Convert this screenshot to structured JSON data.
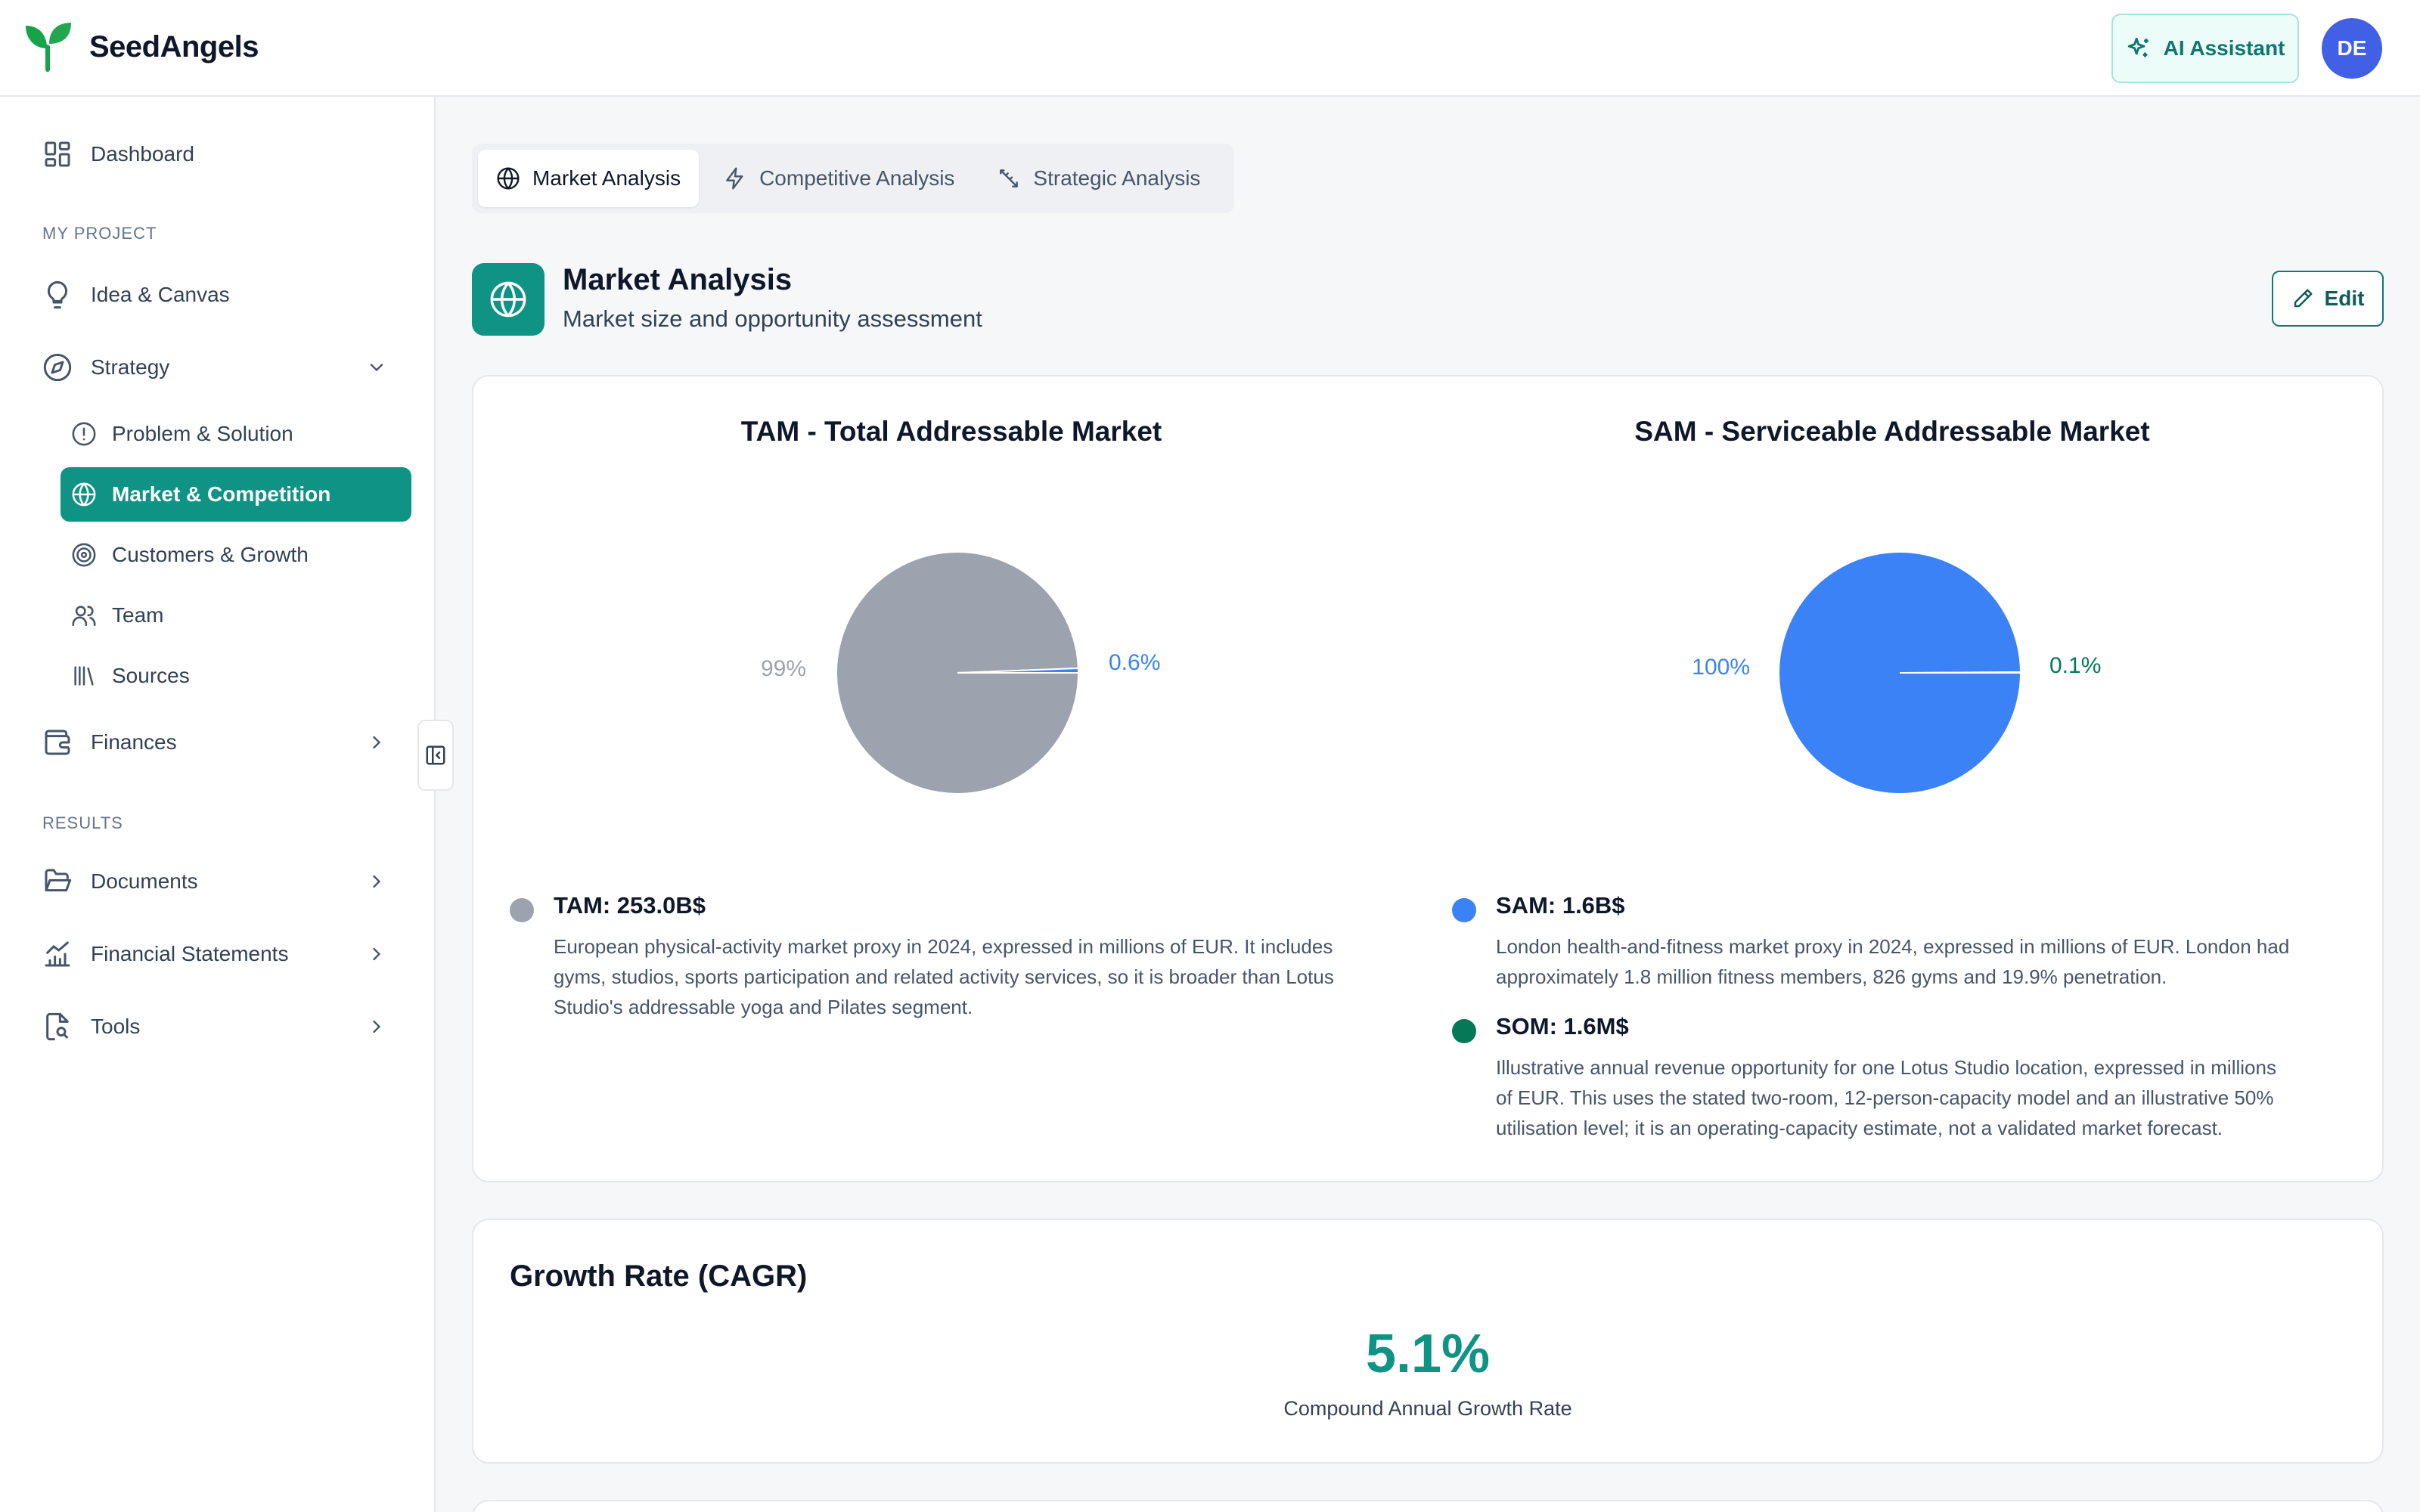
{
  "app": {
    "name": "SeedAngels"
  },
  "header": {
    "ai_button": "AI Assistant",
    "avatar_initials": "DE"
  },
  "sidebar": {
    "dashboard": "Dashboard",
    "section_project": "MY PROJECT",
    "idea_canvas": "Idea & Canvas",
    "strategy": "Strategy",
    "strategy_items": [
      {
        "label": "Problem & Solution",
        "icon": "alert-circle-icon"
      },
      {
        "label": "Market & Competition",
        "icon": "globe-icon",
        "active": true
      },
      {
        "label": "Customers & Growth",
        "icon": "target-icon"
      },
      {
        "label": "Team",
        "icon": "users-icon"
      },
      {
        "label": "Sources",
        "icon": "library-icon"
      }
    ],
    "finances": "Finances",
    "section_results": "RESULTS",
    "documents": "Documents",
    "financial_statements": "Financial Statements",
    "tools": "Tools"
  },
  "tabs": [
    {
      "label": "Market Analysis",
      "icon": "globe-icon",
      "active": true
    },
    {
      "label": "Competitive Analysis",
      "icon": "zap-icon"
    },
    {
      "label": "Strategic Analysis",
      "icon": "pencil-ruler-icon"
    }
  ],
  "section": {
    "title": "Market Analysis",
    "subtitle": "Market size and opportunity assessment",
    "edit_label": "Edit"
  },
  "chart_data": [
    {
      "type": "pie",
      "title": "TAM - Total Addressable Market",
      "slices": [
        {
          "label": "99%",
          "value": 99.4,
          "color": "#9ca3ae"
        },
        {
          "label": "0.6%",
          "value": 0.6,
          "color": "#3b82f6"
        }
      ]
    },
    {
      "type": "pie",
      "title": "SAM - Serviceable Addressable Market",
      "slices": [
        {
          "label": "100%",
          "value": 99.9,
          "color": "#3b82f6"
        },
        {
          "label": "0.1%",
          "value": 0.1,
          "color": "#047857"
        }
      ]
    }
  ],
  "legend": {
    "tam": {
      "title": "TAM: 253.0B$",
      "color": "#9ca3ae",
      "lines": [
        "European physical-activity market proxy in 2024, expressed in millions of EUR. It includes",
        "gyms, studios, sports participation and related activity services, so it is broader than Lotus",
        "Studio's addressable yoga and Pilates segment."
      ]
    },
    "sam": {
      "title": "SAM: 1.6B$",
      "color": "#3b82f6",
      "lines": [
        "London health-and-fitness market proxy in 2024, expressed in millions of EUR. London had",
        "approximately 1.8 million fitness members, 826 gyms and 19.9% penetration."
      ]
    },
    "som": {
      "title": "SOM: 1.6M$",
      "color": "#047857",
      "lines": [
        "Illustrative annual revenue opportunity for one Lotus Studio location, expressed in millions",
        "of EUR. This uses the stated two-room, 12-person-capacity model and an illustrative 50%",
        "utilisation level; it is an operating-capacity estimate, not a validated market forecast."
      ]
    }
  },
  "cagr": {
    "title": "Growth Rate (CAGR)",
    "value": "5.1%",
    "label": "Compound Annual Growth Rate"
  },
  "colors": {
    "accent": "#0f9384",
    "pie_gray": "#9ca3ae",
    "pie_blue": "#3b82f6",
    "pie_green": "#047857"
  }
}
